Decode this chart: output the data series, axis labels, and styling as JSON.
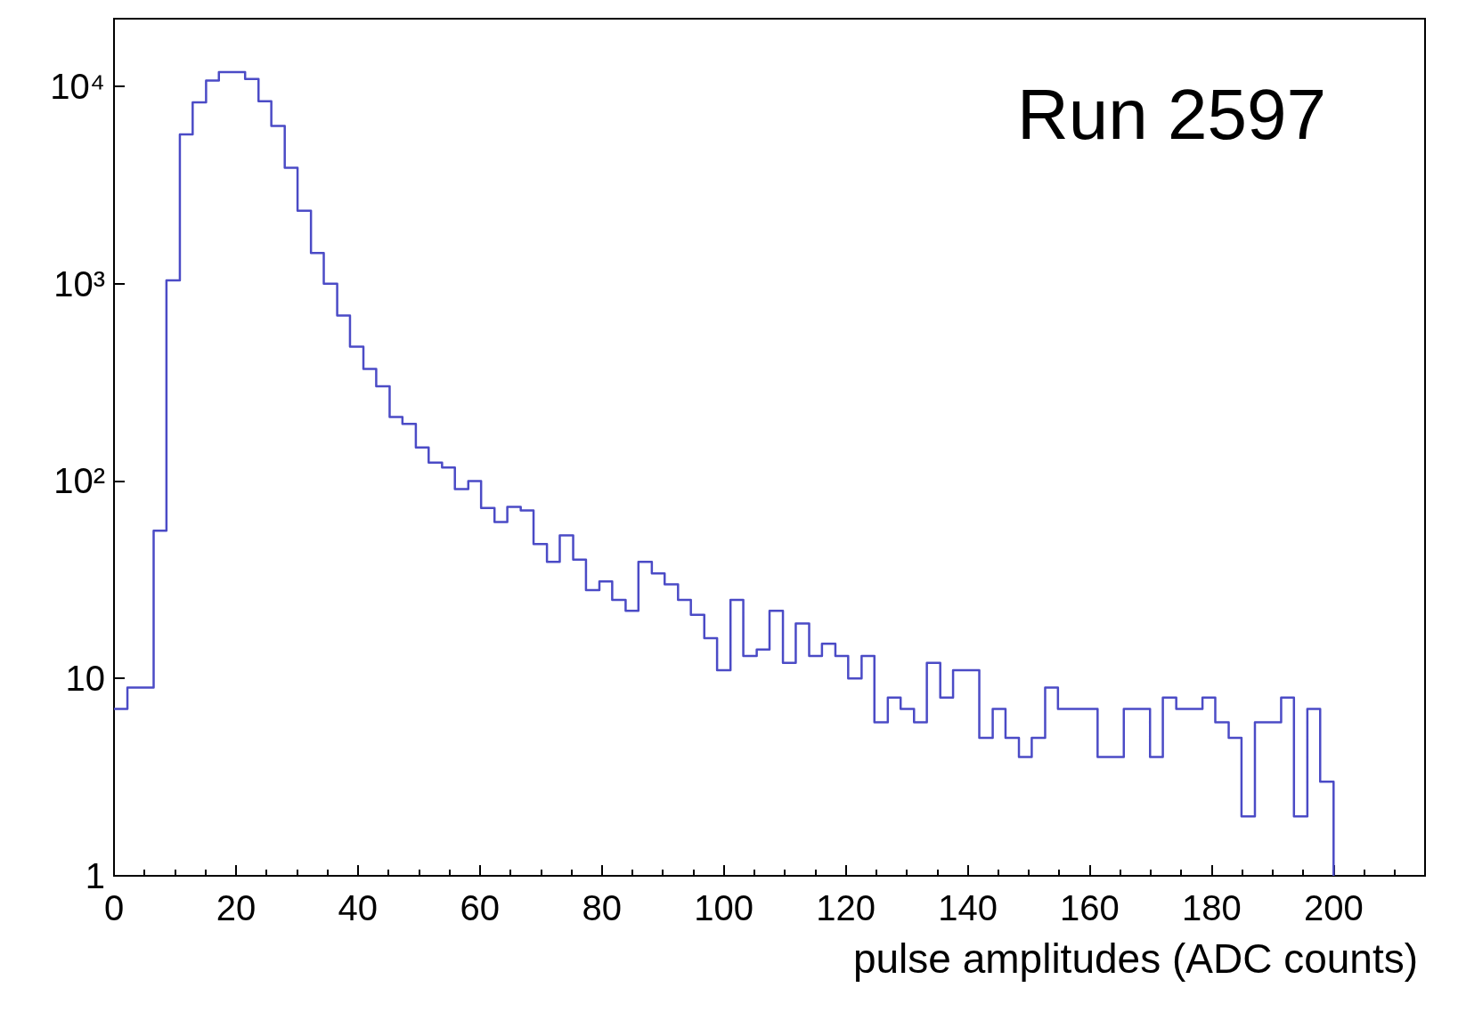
{
  "chart_data": {
    "type": "histogram",
    "xlabel": "pulse amplitudes (ADC counts)",
    "annotations": [
      "Run 2597"
    ],
    "color": "#4b4bc6",
    "log": "y",
    "grid": false,
    "bins": [
      0,
      2.2,
      4.3,
      6.5,
      8.6,
      10.8,
      12.9,
      15.1,
      17.2,
      19.4,
      21.5,
      23.7,
      25.8,
      28.0,
      30.1,
      32.3,
      34.4,
      36.6,
      38.7,
      40.9,
      43.0,
      45.2,
      47.3,
      49.5,
      51.6,
      53.8,
      55.9,
      58.1,
      60.2,
      62.4,
      64.5,
      66.7,
      68.8,
      71.0,
      73.1,
      75.3,
      77.4,
      79.6,
      81.7,
      83.9,
      86.0,
      88.2,
      90.3,
      92.5,
      94.6,
      96.8,
      98.9,
      101.1,
      103.2,
      105.4,
      107.5,
      109.7,
      111.8,
      114.0,
      116.1,
      118.3,
      120.4,
      122.6,
      124.7,
      126.9,
      129.0,
      131.2,
      133.3,
      135.5,
      137.6,
      139.8,
      141.9,
      144.1,
      146.2,
      148.4,
      150.5,
      152.7,
      154.8,
      157.0,
      159.1,
      161.3,
      163.4,
      165.6,
      167.7,
      169.9,
      172.0,
      174.2,
      176.3,
      178.5,
      180.6,
      182.8,
      184.9,
      187.1,
      189.2,
      191.4,
      193.5,
      195.7,
      197.8,
      200
    ],
    "values": [
      7,
      9,
      9,
      56,
      1040,
      5700,
      8300,
      10700,
      11800,
      11800,
      10900,
      8400,
      6300,
      3860,
      2340,
      1430,
      1000,
      690,
      480,
      370,
      302,
      211,
      195,
      148,
      124,
      117,
      91,
      100,
      73,
      62,
      74,
      71,
      48,
      39,
      53,
      40,
      28,
      31,
      25,
      22,
      39,
      34,
      30,
      25,
      21,
      16,
      11,
      25,
      13,
      14,
      22,
      12,
      19,
      13,
      15,
      13,
      10,
      13,
      6,
      8,
      7,
      6,
      12,
      8,
      11,
      11,
      5,
      7,
      5,
      4,
      5,
      9,
      7,
      7,
      7,
      4,
      4,
      7,
      7,
      4,
      8,
      7,
      7,
      8,
      6,
      5,
      2,
      6,
      6,
      8,
      2,
      7,
      3
    ],
    "xlim": [
      0,
      215
    ],
    "xticks": [
      0,
      20,
      40,
      60,
      80,
      100,
      120,
      140,
      160,
      180,
      200
    ],
    "ylim": [
      1,
      22000
    ],
    "yticks": [
      1,
      10,
      {
        "value": 100,
        "label": "10²"
      },
      {
        "value": 1000,
        "label": "10³"
      },
      {
        "value": 10000,
        "label": "10⁴"
      }
    ]
  }
}
